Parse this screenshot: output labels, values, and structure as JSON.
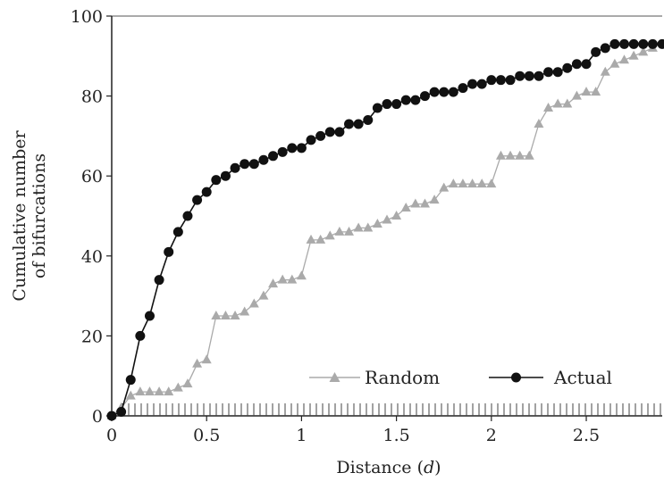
{
  "chart_data": {
    "type": "line",
    "title": "",
    "xlabel": "Distance (",
    "xlabel_var": "d",
    "xlabel_close": ")",
    "ylabel_line1": "Cumulative number",
    "ylabel_line2": "of bifurcations",
    "xlim": [
      0,
      2.9
    ],
    "ylim": [
      0,
      100
    ],
    "x_ticks": [
      0,
      0.5,
      1,
      1.5,
      2,
      2.5
    ],
    "x_tick_labels": [
      "0",
      "0.5",
      "1",
      "1.5",
      "2",
      "2.5"
    ],
    "y_ticks": [
      0,
      20,
      40,
      60,
      80,
      100
    ],
    "y_tick_labels": [
      "0",
      "20",
      "40",
      "60",
      "80",
      "100"
    ],
    "grid": false,
    "legend_position": "bottom-right",
    "rug": true,
    "series": [
      {
        "name": "Random",
        "color": "#aaaaaa",
        "marker": "triangle",
        "x": [
          0.0,
          0.05,
          0.1,
          0.15,
          0.2,
          0.25,
          0.3,
          0.35,
          0.4,
          0.45,
          0.5,
          0.55,
          0.6,
          0.65,
          0.7,
          0.75,
          0.8,
          0.85,
          0.9,
          0.95,
          1.0,
          1.05,
          1.1,
          1.15,
          1.2,
          1.25,
          1.3,
          1.35,
          1.4,
          1.45,
          1.5,
          1.55,
          1.6,
          1.65,
          1.7,
          1.75,
          1.8,
          1.85,
          1.9,
          1.95,
          2.0,
          2.05,
          2.1,
          2.15,
          2.2,
          2.25,
          2.3,
          2.35,
          2.4,
          2.45,
          2.5,
          2.55,
          2.6,
          2.65,
          2.7,
          2.75,
          2.8,
          2.85
        ],
        "y": [
          0,
          2,
          5,
          6,
          6,
          6,
          6,
          7,
          8,
          13,
          14,
          25,
          25,
          25,
          26,
          28,
          30,
          33,
          34,
          34,
          35,
          44,
          44,
          45,
          46,
          46,
          47,
          47,
          48,
          49,
          50,
          52,
          53,
          53,
          54,
          57,
          58,
          58,
          58,
          58,
          58,
          65,
          65,
          65,
          65,
          73,
          77,
          78,
          78,
          80,
          81,
          81,
          86,
          88,
          89,
          90,
          91,
          92
        ]
      },
      {
        "name": "Actual",
        "color": "#111111",
        "marker": "circle",
        "x": [
          0.0,
          0.05,
          0.1,
          0.15,
          0.2,
          0.25,
          0.3,
          0.35,
          0.4,
          0.45,
          0.5,
          0.55,
          0.6,
          0.65,
          0.7,
          0.75,
          0.8,
          0.85,
          0.9,
          0.95,
          1.0,
          1.05,
          1.1,
          1.15,
          1.2,
          1.25,
          1.3,
          1.35,
          1.4,
          1.45,
          1.5,
          1.55,
          1.6,
          1.65,
          1.7,
          1.75,
          1.8,
          1.85,
          1.9,
          1.95,
          2.0,
          2.05,
          2.1,
          2.15,
          2.2,
          2.25,
          2.3,
          2.35,
          2.4,
          2.45,
          2.5,
          2.55,
          2.6,
          2.65,
          2.7,
          2.75,
          2.8,
          2.85,
          2.9
        ],
        "y": [
          0,
          1,
          9,
          20,
          25,
          34,
          41,
          46,
          50,
          54,
          56,
          59,
          60,
          62,
          63,
          63,
          64,
          65,
          66,
          67,
          67,
          69,
          70,
          71,
          71,
          73,
          73,
          74,
          77,
          78,
          78,
          79,
          79,
          80,
          81,
          81,
          81,
          82,
          83,
          83,
          84,
          84,
          84,
          85,
          85,
          85,
          86,
          86,
          87,
          88,
          88,
          91,
          92,
          93,
          93,
          93,
          93,
          93,
          93
        ]
      }
    ]
  }
}
